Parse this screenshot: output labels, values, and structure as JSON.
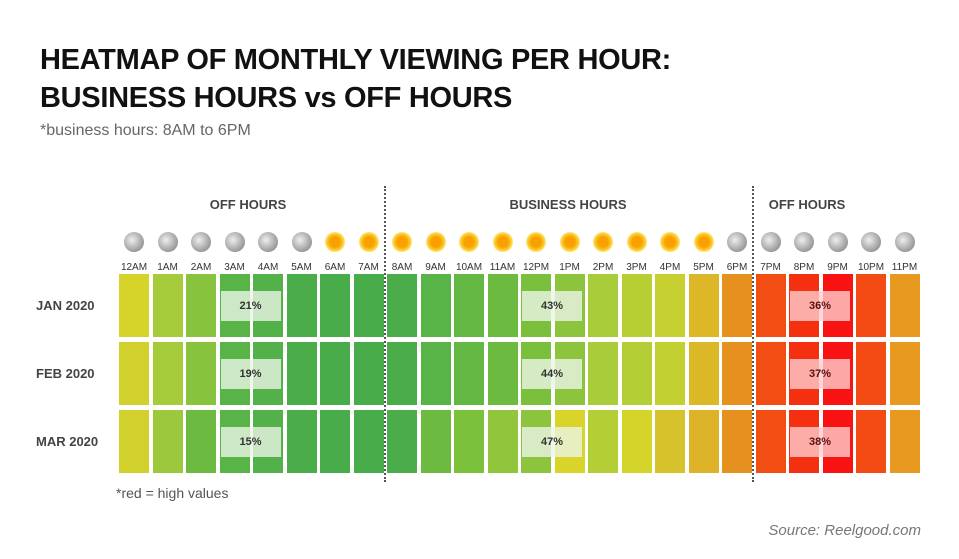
{
  "title_line1": "HEATMAP OF MONTHLY VIEWING PER HOUR:",
  "title_line2": "BUSINESS HOURS vs OFF HOURS",
  "subtitle": "*business hours: 8AM to 6PM",
  "note": "*red = high values",
  "source": "Source: Reelgood.com",
  "chart_data": {
    "type": "heatmap",
    "title": "HEATMAP OF MONTHLY VIEWING PER HOUR: BUSINESS HOURS vs OFF HOURS",
    "sections": [
      "OFF HOURS",
      "BUSINESS HOURS",
      "OFF HOURS"
    ],
    "hours": [
      "12AM",
      "1AM",
      "2AM",
      "3AM",
      "4AM",
      "5AM",
      "6AM",
      "7AM",
      "8AM",
      "9AM",
      "10AM",
      "11AM",
      "12PM",
      "1PM",
      "2PM",
      "3PM",
      "4PM",
      "5PM",
      "6PM",
      "7PM",
      "8PM",
      "9PM",
      "10PM",
      "11PM"
    ],
    "hour_icons": [
      "moon",
      "moon",
      "moon",
      "moon",
      "moon",
      "moon",
      "sun",
      "sun",
      "sun",
      "sun",
      "sun",
      "sun",
      "sun",
      "sun",
      "sun",
      "sun",
      "sun",
      "sun",
      "moon",
      "moon",
      "moon",
      "moon",
      "moon",
      "moon"
    ],
    "months": [
      "JAN 2020",
      "FEB 2020",
      "MAR 2020"
    ],
    "colors": [
      [
        "#d6d32a",
        "#a6cb3a",
        "#88c33e",
        "#58b446",
        "#52b148",
        "#4bad4a",
        "#49ac4a",
        "#49ac4a",
        "#4bad4a",
        "#58b446",
        "#62b843",
        "#6cbb40",
        "#7ac03c",
        "#8cc43e",
        "#a8cc3a",
        "#b8cf34",
        "#c6d030",
        "#dcb828",
        "#e6901f",
        "#f24e14",
        "#f43010",
        "#f81212",
        "#f44a14",
        "#e89a20"
      ],
      [
        "#d2d02c",
        "#a6cb3a",
        "#88c33e",
        "#58b446",
        "#52b148",
        "#4bad4a",
        "#49ac4a",
        "#49ac4a",
        "#4bad4a",
        "#58b446",
        "#62b843",
        "#6cbb40",
        "#7ac03c",
        "#8cc43e",
        "#a8cc3a",
        "#b4ce36",
        "#c2d032",
        "#dab828",
        "#e6901f",
        "#f24e14",
        "#f43010",
        "#f81212",
        "#f44a14",
        "#e89a20"
      ],
      [
        "#d2d02c",
        "#9cc83c",
        "#6cbb40",
        "#58b446",
        "#52b148",
        "#4bad4a",
        "#49ac4a",
        "#49ac4a",
        "#4bad4a",
        "#6cbb40",
        "#7cc13c",
        "#90c53c",
        "#8cc43e",
        "#d8d42a",
        "#b4ce36",
        "#d4d42a",
        "#d6c22a",
        "#dcb228",
        "#e6901f",
        "#f24e14",
        "#f43010",
        "#f81212",
        "#f44a14",
        "#e89a20"
      ]
    ],
    "value_labels": [
      {
        "group": "3AM-4AM",
        "values": [
          "21%",
          "19%",
          "15%"
        ]
      },
      {
        "group": "12PM-1PM",
        "values": [
          "43%",
          "44%",
          "47%"
        ]
      },
      {
        "group": "8PM-9PM",
        "values": [
          "36%",
          "37%",
          "38%"
        ]
      }
    ],
    "legend": "red = high values"
  }
}
